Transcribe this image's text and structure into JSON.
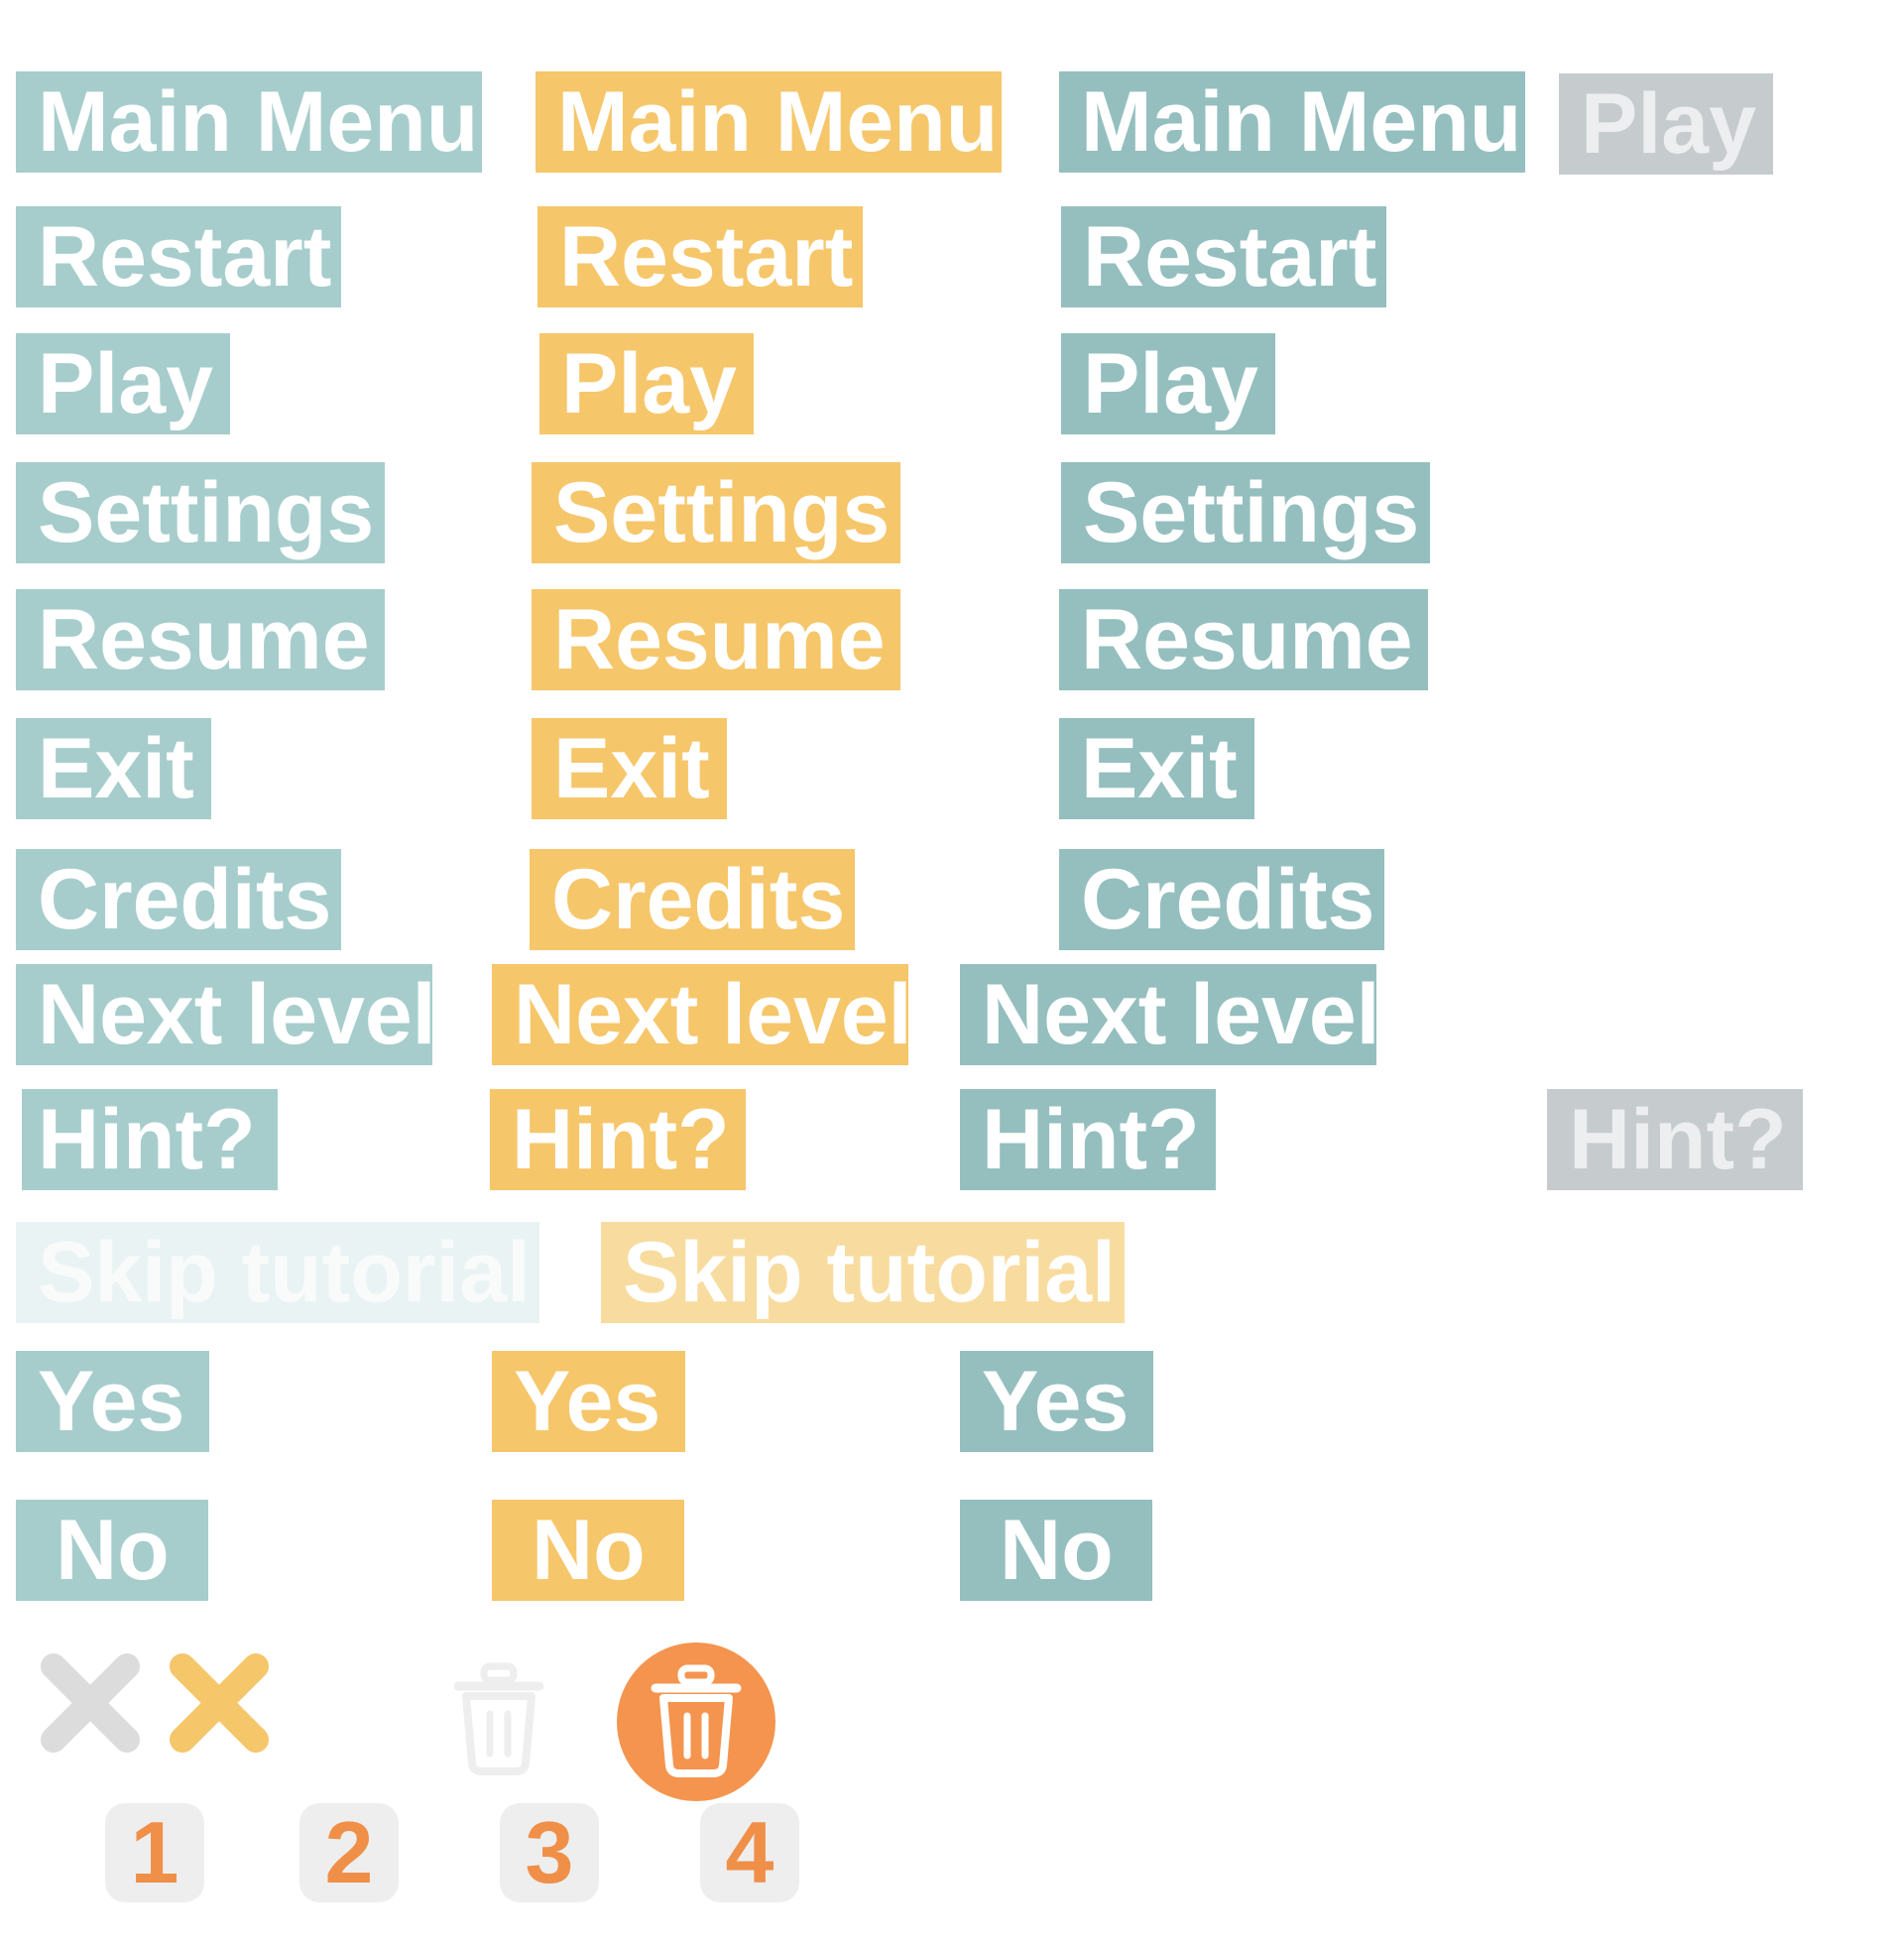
{
  "colors": {
    "teal_light": "#a6cdcc",
    "teal_dark": "#94bfbe",
    "orange": "#f6c66a",
    "gray_disabled": "#c6cbce",
    "trash_orange": "#f4944f",
    "number_orange": "#f08f48"
  },
  "buttons": {
    "main_menu": [
      "Main Menu",
      "Main Menu",
      "Main Menu"
    ],
    "play_disabled": "Play",
    "restart": [
      "Restart",
      "Restart",
      "Restart"
    ],
    "play": [
      "Play",
      "Play",
      "Play"
    ],
    "settings": [
      "Settings",
      "Settings",
      "Settings"
    ],
    "resume": [
      "Resume",
      "Resume",
      "Resume"
    ],
    "exit": [
      "Exit",
      "Exit",
      "Exit"
    ],
    "credits": [
      "Credits",
      "Credits",
      "Credits"
    ],
    "next_level": [
      "Next level",
      "Next level",
      "Next level"
    ],
    "hint": [
      "Hint?",
      "Hint?",
      "Hint?"
    ],
    "hint_disabled": "Hint?",
    "skip_tutorial": [
      "Skip tutorial",
      "Skip tutorial"
    ],
    "yes": [
      "Yes",
      "Yes",
      "Yes"
    ],
    "no": [
      "No",
      "No",
      "No"
    ]
  },
  "icons": [
    "close-icon",
    "close-icon",
    "trash-icon",
    "trash-icon"
  ],
  "numbers": [
    "1",
    "2",
    "3",
    "4"
  ]
}
